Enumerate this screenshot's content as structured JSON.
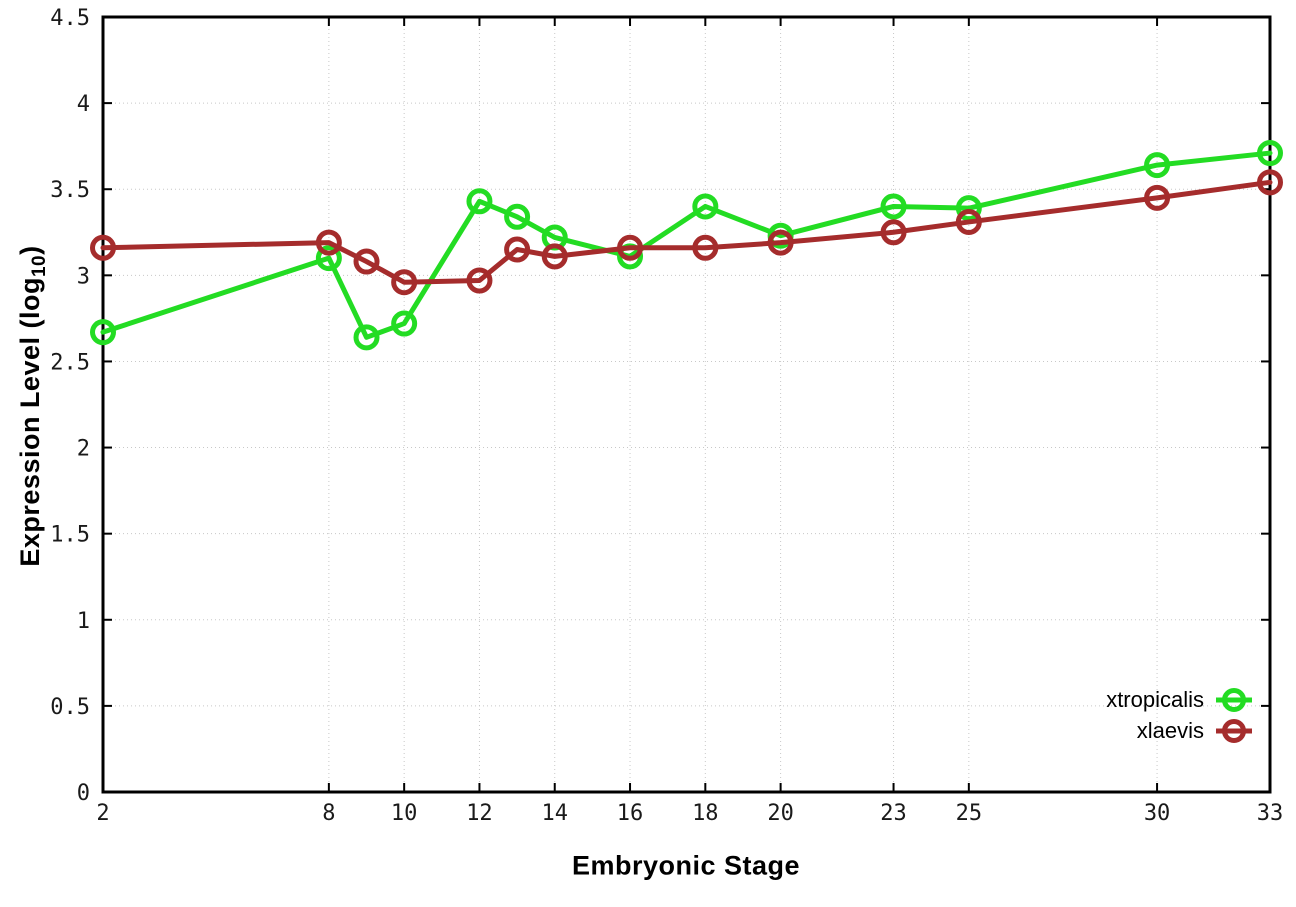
{
  "chart_data": {
    "type": "line",
    "title": "",
    "xlabel": "Embryonic Stage",
    "ylabel": "Expression Level (log10)",
    "ylabel_parts": {
      "main": "Expression Level (log",
      "sub": "10",
      "close": ")"
    },
    "x": [
      2,
      8,
      9,
      10,
      12,
      13,
      14,
      16,
      18,
      20,
      23,
      25,
      30,
      33
    ],
    "series": [
      {
        "name": "xtropicalis",
        "color": "#23dc23",
        "values": [
          2.67,
          3.1,
          2.64,
          2.72,
          3.43,
          3.34,
          3.22,
          3.11,
          3.4,
          3.23,
          3.4,
          3.39,
          3.64,
          3.71
        ]
      },
      {
        "name": "xlaevis",
        "color": "#a52c2c",
        "values": [
          3.16,
          3.19,
          3.08,
          2.96,
          2.97,
          3.15,
          3.11,
          3.16,
          3.16,
          3.19,
          3.25,
          3.31,
          3.45,
          3.54
        ]
      }
    ],
    "xticks": [
      2,
      8,
      10,
      12,
      14,
      16,
      18,
      20,
      23,
      25,
      30,
      33
    ],
    "yticks": [
      0,
      0.5,
      1,
      1.5,
      2,
      2.5,
      3,
      3.5,
      4,
      4.5
    ],
    "xlim": [
      2,
      33
    ],
    "ylim": [
      0,
      4.5
    ],
    "grid": true,
    "legend_position": "bottom-right",
    "marker": "open-circle"
  },
  "style": {
    "background": "#ffffff",
    "axis_color": "#000000",
    "grid_color": "#c8c8c8",
    "tick_label_color": "#1a1a1a"
  }
}
